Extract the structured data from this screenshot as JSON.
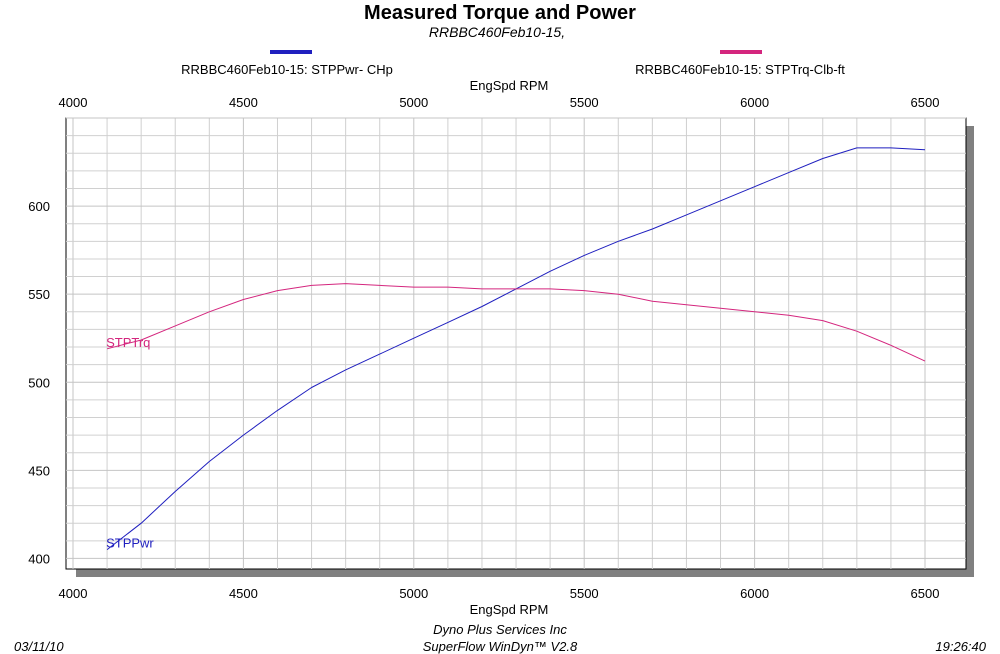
{
  "header": {
    "title": "Measured Torque and Power",
    "subtitle": "RRBBC460Feb10-15,"
  },
  "footer": {
    "date": "03/11/10",
    "company": "Dyno Plus Services Inc",
    "software": "SuperFlow WinDyn™ V2.8",
    "time": "19:26:40"
  },
  "colors": {
    "power": "#1f1fbf",
    "torque": "#d4267e",
    "grid": "#d0d0d0",
    "shadow": "#808080"
  },
  "chart_data": {
    "type": "line",
    "title": "Measured Torque and Power",
    "subtitle": "RRBBC460Feb10-15,",
    "xlabel": "EngSpd  RPM",
    "ylabel": "",
    "xlim": [
      4000,
      6500
    ],
    "ylim": [
      394,
      650
    ],
    "x_ticks": [
      4000,
      4500,
      5000,
      5500,
      6000,
      6500
    ],
    "y_ticks": [
      400,
      450,
      500,
      550,
      600
    ],
    "grid": true,
    "legend_placement": "top",
    "series": [
      {
        "name": "RRBBC460Feb10-15: STPPwr- CHp",
        "tag": "STPPwr",
        "color": "#1f1fbf",
        "x": [
          4100,
          4200,
          4300,
          4400,
          4500,
          4600,
          4700,
          4800,
          4900,
          5000,
          5100,
          5200,
          5300,
          5400,
          5500,
          5600,
          5700,
          5800,
          5900,
          6000,
          6100,
          6200,
          6300,
          6400,
          6500
        ],
        "values": [
          405,
          420,
          438,
          455,
          470,
          484,
          497,
          507,
          516,
          525,
          534,
          543,
          553,
          563,
          572,
          580,
          587,
          595,
          603,
          611,
          619,
          627,
          633,
          633,
          632
        ]
      },
      {
        "name": "RRBBC460Feb10-15: STPTrq-Clb-ft",
        "tag": "STPTrq",
        "color": "#d4267e",
        "x": [
          4100,
          4200,
          4300,
          4400,
          4500,
          4600,
          4700,
          4800,
          4900,
          5000,
          5100,
          5200,
          5300,
          5400,
          5500,
          5600,
          5700,
          5800,
          5900,
          6000,
          6100,
          6200,
          6300,
          6400,
          6500
        ],
        "values": [
          519,
          524,
          532,
          540,
          547,
          552,
          555,
          556,
          555,
          554,
          554,
          553,
          553,
          553,
          552,
          550,
          546,
          544,
          542,
          540,
          538,
          535,
          529,
          521,
          512
        ]
      }
    ]
  }
}
